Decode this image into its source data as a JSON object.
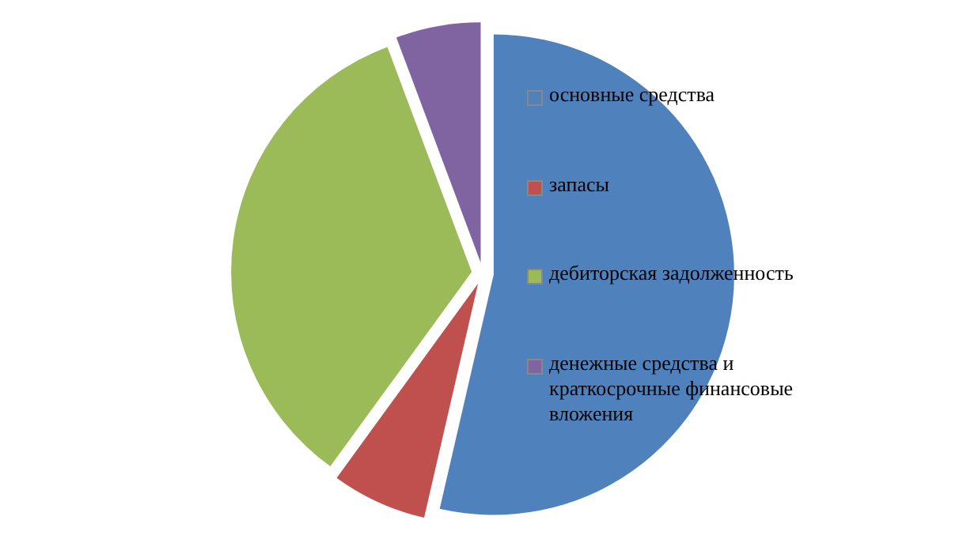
{
  "chart_data": {
    "type": "pie",
    "categories": [
      "основные средства",
      "запасы",
      "дебиторская задолженность",
      "денежные средства и краткосрочные финансовые вложения"
    ],
    "values": [
      53.6,
      6.4,
      34.3,
      5.7
    ],
    "colors": [
      "#4f81bd",
      "#c0504d",
      "#9bbb59",
      "#8064a2"
    ],
    "legend": "right"
  }
}
